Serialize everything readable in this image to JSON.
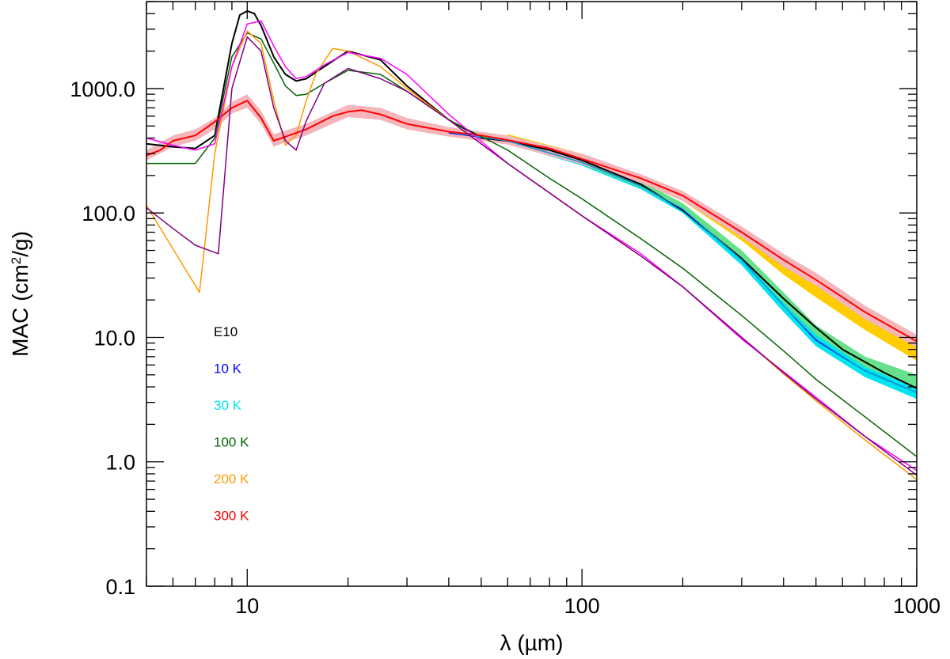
{
  "chart_data": {
    "type": "line",
    "title": "",
    "xlabel": "λ (µm)",
    "ylabel": "MAC (cm²/g)",
    "ylabel_parts": {
      "before": "MAC (cm",
      "sup": "2",
      "after": "/g)"
    },
    "xscale": "log",
    "yscale": "log",
    "xlim": [
      5,
      1000
    ],
    "ylim": [
      0.1,
      5000
    ],
    "grid": false,
    "x_ticks": [
      {
        "value": 10,
        "label": "10"
      },
      {
        "value": 100,
        "label": "100"
      },
      {
        "value": 1000,
        "label": "1000"
      }
    ],
    "y_ticks": [
      {
        "value": 0.1,
        "label": "0.1"
      },
      {
        "value": 1,
        "label": "1.0"
      },
      {
        "value": 10,
        "label": "10.0"
      },
      {
        "value": 100,
        "label": "100.0"
      },
      {
        "value": 1000,
        "label": "1000.0"
      }
    ],
    "legend": {
      "placement": "left-middle",
      "entries": [
        {
          "label": "E10",
          "color": "#000000"
        },
        {
          "label": "10 K",
          "color": "#0000ff"
        },
        {
          "label": "30 K",
          "color": "#00e5ee"
        },
        {
          "label": "100 K",
          "color": "#006400"
        },
        {
          "label": "200 K",
          "color": "#ff9900"
        },
        {
          "label": "300 K",
          "color": "#ff0000"
        }
      ]
    },
    "bands": [
      {
        "color": "#00e5ee",
        "x": [
          40,
          60,
          100,
          150,
          200,
          300,
          400,
          500,
          700,
          1000
        ],
        "lower": [
          420,
          360,
          240,
          155,
          100,
          38,
          16,
          8.5,
          4.8,
          3.2
        ],
        "upper": [
          470,
          400,
          270,
          175,
          115,
          46,
          20,
          11,
          6,
          4
        ]
      },
      {
        "color": "#66e08a",
        "x": [
          40,
          60,
          100,
          150,
          200,
          300,
          400,
          500,
          700,
          1000
        ],
        "lower": [
          430,
          370,
          245,
          160,
          105,
          43,
          19,
          10.5,
          5.8,
          3.9
        ],
        "upper": [
          480,
          410,
          280,
          180,
          120,
          50,
          23,
          12.5,
          7,
          5
        ]
      },
      {
        "color": "#ffcc00",
        "x": [
          60,
          100,
          150,
          200,
          300,
          400,
          500,
          700,
          1000
        ],
        "lower": [
          390,
          260,
          175,
          125,
          60,
          32,
          21,
          11.5,
          6.5
        ],
        "upper": [
          430,
          300,
          200,
          145,
          72,
          40,
          27,
          15,
          9
        ]
      },
      {
        "color": "#f4b6bb",
        "x": [
          5,
          6,
          7,
          8,
          9,
          10,
          11,
          12,
          13,
          15,
          20,
          25,
          30,
          40,
          60,
          100,
          150,
          200,
          300,
          400,
          500,
          700,
          1000
        ],
        "lower": [
          265,
          340,
          380,
          470,
          630,
          700,
          520,
          340,
          370,
          420,
          590,
          560,
          470,
          410,
          355,
          245,
          175,
          125,
          64,
          37,
          26,
          14,
          8.3
        ],
        "upper": [
          320,
          420,
          470,
          580,
          780,
          900,
          660,
          430,
          460,
          520,
          740,
          700,
          580,
          490,
          420,
          300,
          205,
          150,
          78,
          47,
          33,
          18,
          10.5
        ]
      }
    ],
    "series": [
      {
        "name": "E10",
        "color": "#000000",
        "width": 2,
        "x": [
          5,
          6,
          7,
          8,
          9,
          9.5,
          10,
          10.5,
          11,
          12,
          13,
          14,
          15,
          17,
          20,
          25,
          30,
          40,
          50,
          60,
          80,
          100,
          150,
          200,
          300,
          400,
          500,
          600,
          800,
          1000
        ],
        "y": [
          360,
          340,
          330,
          420,
          2300,
          3900,
          4200,
          4000,
          3200,
          1800,
          1300,
          1150,
          1200,
          1500,
          2000,
          1700,
          1050,
          560,
          400,
          380,
          320,
          265,
          170,
          105,
          43,
          20.5,
          12,
          8,
          5.2,
          3.9
        ]
      },
      {
        "name": "10 K",
        "color": "#0000ff",
        "width": 1.5,
        "x": [
          40,
          60,
          100,
          150,
          200,
          300,
          400,
          500,
          700,
          1000
        ],
        "y": [
          440,
          380,
          255,
          165,
          107,
          42,
          18,
          9.5,
          5.4,
          3.6
        ]
      },
      {
        "name": "30 K",
        "color": "#00b8c8",
        "width": 1.2,
        "x": [
          40,
          60,
          100,
          150,
          200,
          300,
          400,
          500,
          700,
          1000
        ],
        "y": [
          445,
          380,
          255,
          165,
          108,
          42,
          18,
          9.7,
          5.4,
          3.6
        ]
      },
      {
        "name": "100 K",
        "color": "#006400",
        "width": 1.5,
        "x": [
          5,
          6,
          7,
          8,
          9,
          10,
          11,
          12,
          13,
          14,
          15,
          17,
          20,
          25,
          30,
          40,
          60,
          80,
          100,
          150,
          200,
          300,
          400,
          500,
          700,
          1000
        ],
        "y": [
          250,
          250,
          250,
          400,
          1800,
          2800,
          2500,
          1600,
          1050,
          880,
          900,
          1100,
          1400,
          1300,
          950,
          560,
          320,
          190,
          130,
          62,
          36,
          15,
          7.8,
          4.6,
          2.3,
          1.1
        ]
      },
      {
        "name": "200 K",
        "color": "#ff9900",
        "width": 1.5,
        "x": [
          5,
          7.2,
          8,
          9,
          10,
          11,
          12,
          13,
          14,
          15,
          16,
          18,
          20,
          25,
          30,
          40,
          60,
          100,
          150,
          200,
          300,
          400,
          500,
          700,
          1000
        ],
        "y": [
          115,
          23,
          300,
          1500,
          2900,
          2300,
          800,
          350,
          420,
          800,
          1300,
          2100,
          2000,
          1500,
          1000,
          560,
          250,
          95,
          45,
          25.5,
          10,
          5.1,
          3.1,
          1.5,
          0.72
        ]
      },
      {
        "name": "300 K",
        "color": "#ff0000",
        "width": 2,
        "x": [
          5,
          5.5,
          6,
          7,
          8,
          9,
          10,
          11,
          12,
          13,
          15,
          18,
          20,
          22,
          25,
          30,
          40,
          50,
          60,
          80,
          100,
          150,
          200,
          300,
          400,
          500,
          700,
          1000
        ],
        "y": [
          290,
          320,
          380,
          420,
          540,
          700,
          800,
          580,
          380,
          410,
          470,
          600,
          650,
          670,
          620,
          520,
          450,
          420,
          385,
          330,
          272,
          190,
          138,
          70,
          42,
          29,
          16,
          9.3
        ]
      },
      {
        "name": "magenta",
        "color": "#ff00ff",
        "width": 1.5,
        "x": [
          5,
          6,
          7,
          8,
          9,
          10,
          11,
          12,
          13,
          14,
          15,
          17,
          20,
          25,
          30,
          40,
          60,
          100,
          150,
          200,
          300,
          400,
          500,
          700,
          1000
        ],
        "y": [
          400,
          350,
          320,
          360,
          1500,
          3300,
          3500,
          2200,
          1500,
          1200,
          1250,
          1550,
          1950,
          1750,
          1300,
          620,
          250,
          95,
          47,
          25.5,
          9.7,
          5.3,
          3.3,
          1.6,
          0.85
        ]
      },
      {
        "name": "purple",
        "color": "#800080",
        "width": 1.5,
        "x": [
          5,
          6,
          7,
          8.2,
          9,
          10,
          11,
          12,
          13,
          14,
          15,
          17,
          20,
          25,
          30,
          40,
          60,
          100,
          150,
          200,
          300,
          400,
          500,
          700,
          1000
        ],
        "y": [
          110,
          75,
          55,
          47,
          1000,
          2600,
          2000,
          700,
          380,
          320,
          550,
          1100,
          1450,
          1200,
          950,
          560,
          250,
          95,
          45,
          25.5,
          10,
          5.2,
          3.2,
          1.6,
          0.78
        ]
      }
    ]
  }
}
